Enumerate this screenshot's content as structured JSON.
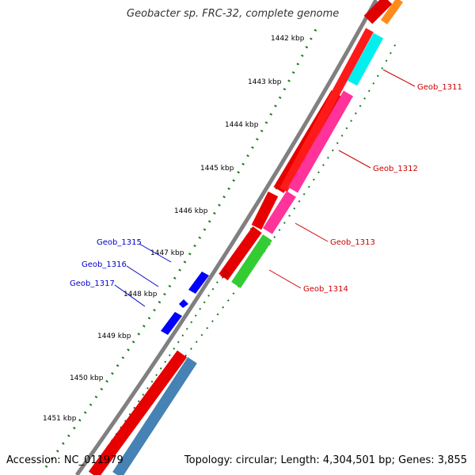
{
  "title": "Geobacter sp. FRC-32, complete genome",
  "accession": "Accession: NC_011979",
  "topology": "Topology: circular; Length: 4,304,501 bp; Genes: 3,855",
  "ticks": [
    "1442 kbp",
    "1443 kbp",
    "1444 kbp",
    "1445 kbp",
    "1446 kbp",
    "1447 kbp",
    "1448 kbp",
    "1449 kbp",
    "1450 kbp",
    "1451 kbp"
  ],
  "genes": {
    "reverse": [
      "Geob_1311",
      "Geob_1312",
      "Geob_1313",
      "Geob_1314"
    ],
    "forward": [
      "Geob_1315",
      "Geob_1316",
      "Geob_1317"
    ]
  },
  "colors": {
    "backbone": "#808080",
    "cds_reverse": "#ff0000",
    "cyan_feature": "#00ffff",
    "magenta_feature": "#ff3399",
    "green_feature": "#33cc33",
    "steelblue_feature": "#4682b4",
    "cds_forward": "#0000ff",
    "tick_color": "#1a7a1a",
    "label_reverse": "#cc0000",
    "label_forward": "#0000cc"
  }
}
